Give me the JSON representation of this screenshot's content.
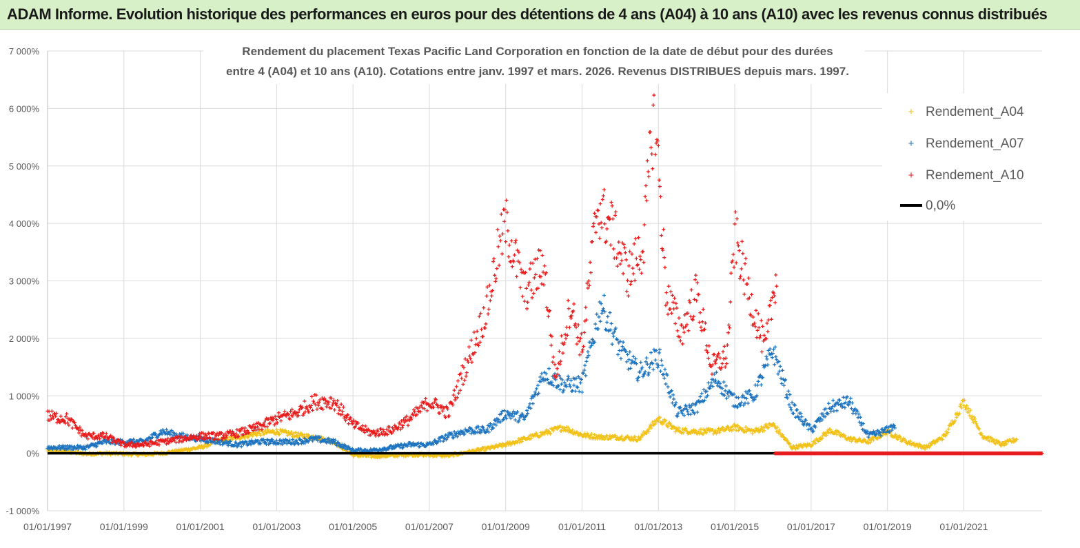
{
  "banner": {
    "title": "ADAM Informe. Evolution historique des performances en euros pour des détentions de 4 ans (A04) à 10 ans (A10) avec les revenus connus distribués"
  },
  "colors": {
    "A04": "#f2c21a",
    "A07": "#1f74c0",
    "A10": "#e81d1d",
    "zero": "#000000",
    "grid": "#d9d9d9",
    "banner_bg": "#d8f0c8"
  },
  "chart_data": {
    "type": "scatter",
    "title_line1": "Rendement du placement Texas Pacific Land Corporation en fonction de la date de début pour des durées",
    "title_line2": "entre 4 (A04) et 10 ans (A10).  Cotations entre janv. 1997 et mars. 2026. Revenus DISTRIBUES depuis mars. 1997.",
    "xlim": [
      1997.0,
      2023.05
    ],
    "ylim": [
      -1000,
      7000
    ],
    "y_ticks": [
      -1000,
      0,
      1000,
      2000,
      3000,
      4000,
      5000,
      6000,
      7000
    ],
    "y_tick_labels": [
      "-1 000%",
      "0%",
      "1 000%",
      "2 000%",
      "3 000%",
      "4 000%",
      "5 000%",
      "6 000%",
      "7 000%"
    ],
    "x_ticks": [
      1997,
      1999,
      2001,
      2003,
      2005,
      2007,
      2009,
      2011,
      2013,
      2015,
      2017,
      2019,
      2021
    ],
    "x_tick_labels": [
      "01/01/1997",
      "01/01/1999",
      "01/01/2001",
      "01/01/2003",
      "01/01/2005",
      "01/01/2007",
      "01/01/2009",
      "01/01/2011",
      "01/01/2013",
      "01/01/2015",
      "01/01/2017",
      "01/01/2019",
      "01/01/2021"
    ],
    "legend": {
      "position": "top-right",
      "entries": [
        "Rendement_A04",
        "Rendement_A07",
        "Rendement_A10",
        "0,0%"
      ]
    },
    "series": [
      {
        "name": "Rendement_A04",
        "x": [
          1997.0,
          1997.5,
          1998.0,
          1998.5,
          1999.0,
          1999.5,
          2000.0,
          2000.5,
          2001.0,
          2001.5,
          2002.0,
          2002.5,
          2003.0,
          2003.5,
          2004.0,
          2004.5,
          2005.0,
          2005.5,
          2006.0,
          2006.5,
          2007.0,
          2007.5,
          2008.0,
          2008.5,
          2009.0,
          2009.5,
          2010.0,
          2010.5,
          2011.0,
          2011.5,
          2012.0,
          2012.5,
          2013.0,
          2013.5,
          2014.0,
          2014.5,
          2015.0,
          2015.5,
          2016.0,
          2016.5,
          2017.0,
          2017.5,
          2018.0,
          2018.5,
          2019.0,
          2019.5,
          2020.0,
          2020.5,
          2021.0,
          2021.5,
          2022.0,
          2022.4
        ],
        "values": [
          50,
          30,
          -10,
          0,
          -10,
          -20,
          0,
          50,
          100,
          220,
          280,
          350,
          380,
          320,
          280,
          200,
          -30,
          -50,
          -40,
          -20,
          -30,
          -40,
          20,
          80,
          150,
          250,
          350,
          450,
          320,
          280,
          280,
          250,
          600,
          400,
          380,
          380,
          450,
          380,
          500,
          100,
          150,
          400,
          250,
          200,
          380,
          200,
          100,
          300,
          900,
          300,
          150,
          250
        ]
      },
      {
        "name": "Rendement_A07",
        "x": [
          1997.0,
          1997.5,
          1998.0,
          1998.5,
          1999.0,
          1999.5,
          2000.0,
          2000.5,
          2001.0,
          2001.5,
          2002.0,
          2002.5,
          2003.0,
          2003.5,
          2004.0,
          2004.5,
          2005.0,
          2005.5,
          2006.0,
          2006.5,
          2007.0,
          2007.5,
          2008.0,
          2008.5,
          2009.0,
          2009.5,
          2010.0,
          2010.5,
          2011.0,
          2011.5,
          2012.0,
          2012.5,
          2013.0,
          2013.5,
          2014.0,
          2014.5,
          2015.0,
          2015.5,
          2016.0,
          2016.5,
          2017.0,
          2017.5,
          2018.0,
          2018.5,
          2019.0,
          2019.2
        ],
        "values": [
          100,
          100,
          100,
          200,
          200,
          200,
          380,
          300,
          250,
          200,
          150,
          200,
          200,
          200,
          250,
          200,
          50,
          50,
          100,
          150,
          150,
          300,
          400,
          400,
          700,
          600,
          1400,
          1200,
          1200,
          2600,
          1800,
          1400,
          1700,
          700,
          800,
          1300,
          900,
          1000,
          1800,
          800,
          400,
          800,
          900,
          300,
          400,
          500
        ]
      },
      {
        "name": "Rendement_A10",
        "x": [
          1997.0,
          1997.5,
          1998.0,
          1998.5,
          1999.0,
          1999.5,
          2000.0,
          2000.5,
          2001.0,
          2001.5,
          2002.0,
          2002.5,
          2003.0,
          2003.5,
          2004.0,
          2004.5,
          2005.0,
          2005.5,
          2006.0,
          2006.5,
          2007.0,
          2007.5,
          2008.0,
          2008.5,
          2008.8,
          2009.0,
          2009.5,
          2010.0,
          2010.3,
          2010.7,
          2011.0,
          2011.4,
          2011.8,
          2012.2,
          2012.6,
          2012.9,
          2013.2,
          2013.6,
          2014.0,
          2014.4,
          2014.8,
          2015.0,
          2015.4,
          2015.8,
          2016.1
        ],
        "values": [
          650,
          600,
          300,
          300,
          150,
          150,
          200,
          250,
          300,
          300,
          350,
          450,
          600,
          700,
          900,
          900,
          500,
          350,
          400,
          600,
          900,
          700,
          1600,
          2500,
          3500,
          4000,
          2800,
          3300,
          1300,
          2600,
          1800,
          4300,
          3900,
          3100,
          3600,
          6100,
          2800,
          2100,
          2800,
          1500,
          1700,
          3800,
          2700,
          1800,
          3200
        ]
      },
      {
        "name": "Rendement_A10_zero_tail",
        "x": [
          2016.05,
          2023.05
        ],
        "values": [
          0,
          0
        ]
      },
      {
        "name": "0,0%",
        "x": [
          1997.0,
          2023.05
        ],
        "values": [
          0,
          0
        ]
      }
    ]
  }
}
